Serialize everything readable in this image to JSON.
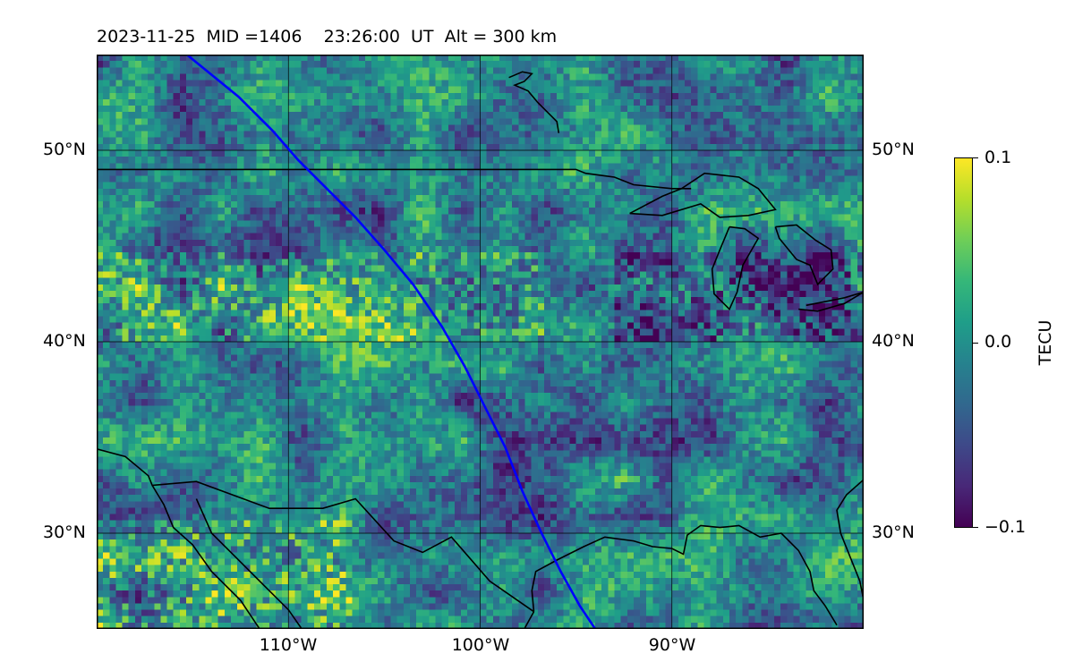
{
  "title": "2023-11-25  MID =1406    23:26:00  UT  Alt = 300 km",
  "map": {
    "type": "heatmap",
    "lon_range": [
      -120,
      -80
    ],
    "lat_range": [
      25,
      55
    ],
    "grid_lons": [
      -110,
      -100,
      -90
    ],
    "grid_lats": [
      30,
      40,
      50
    ],
    "lat_labels": [
      "30°N",
      "40°N",
      "50°N"
    ],
    "lon_labels": [
      "110°W",
      "100°W",
      "90°W"
    ],
    "track_color": "#0000ff",
    "track": [
      [
        -115.3,
        55
      ],
      [
        -112.6,
        52.8
      ],
      [
        -110.8,
        51.0
      ],
      [
        -109.5,
        49.5
      ],
      [
        -108,
        48
      ],
      [
        -106.5,
        46.5
      ],
      [
        -105,
        44.8
      ],
      [
        -103.5,
        43
      ],
      [
        -102,
        40.8
      ],
      [
        -100.8,
        38.7
      ],
      [
        -99.7,
        36.5
      ],
      [
        -98.7,
        34.5
      ],
      [
        -97.8,
        32.2
      ],
      [
        -96.8,
        30.0
      ],
      [
        -95.8,
        28.0
      ],
      [
        -94.8,
        26.2
      ],
      [
        -94.0,
        25
      ]
    ],
    "coastlines": {
      "us_canada_border": [
        [
          -120,
          49.0
        ],
        [
          -95.0,
          49.0
        ],
        [
          -94.5,
          48.8
        ],
        [
          -93,
          48.6
        ],
        [
          -92,
          48.2
        ],
        [
          -90,
          48.0
        ],
        [
          -89,
          48.0
        ]
      ],
      "hudson_bay": [
        [
          -98.5,
          53.8
        ],
        [
          -97.8,
          54.1
        ],
        [
          -97.3,
          54.0
        ],
        [
          -97.7,
          53.6
        ],
        [
          -98.2,
          53.4
        ],
        [
          -97.5,
          53.1
        ],
        [
          -97,
          52.5
        ],
        [
          -96.5,
          52.0
        ],
        [
          -96,
          51.5
        ],
        [
          -95.9,
          50.9
        ]
      ],
      "lake_superior": [
        [
          -92.2,
          46.7
        ],
        [
          -90.5,
          47.6
        ],
        [
          -89.5,
          48.0
        ],
        [
          -88.3,
          48.8
        ],
        [
          -86.5,
          48.6
        ],
        [
          -85.5,
          48.0
        ],
        [
          -84.6,
          46.9
        ],
        [
          -86,
          46.6
        ],
        [
          -87.5,
          46.5
        ],
        [
          -88.5,
          47.2
        ],
        [
          -90.5,
          46.6
        ],
        [
          -92.2,
          46.7
        ]
      ],
      "lake_michigan": [
        [
          -87.0,
          46.0
        ],
        [
          -86.2,
          45.9
        ],
        [
          -85.5,
          45.4
        ],
        [
          -86.3,
          44.0
        ],
        [
          -86.6,
          42.6
        ],
        [
          -87.0,
          41.7
        ],
        [
          -87.8,
          42.5
        ],
        [
          -87.9,
          43.8
        ],
        [
          -87.5,
          44.8
        ],
        [
          -87.0,
          46.0
        ]
      ],
      "lake_huron": [
        [
          -84.6,
          46.0
        ],
        [
          -83.5,
          46.1
        ],
        [
          -82.5,
          45.3
        ],
        [
          -81.7,
          44.8
        ],
        [
          -81.6,
          43.8
        ],
        [
          -82.4,
          43.0
        ],
        [
          -82.8,
          44.0
        ],
        [
          -83.5,
          44.3
        ],
        [
          -84.4,
          45.4
        ],
        [
          -84.6,
          46.0
        ]
      ],
      "lake_erie": [
        [
          -83.4,
          41.7
        ],
        [
          -82.4,
          41.6
        ],
        [
          -81.0,
          42.0
        ],
        [
          -80,
          42.6
        ],
        [
          -81.0,
          42.3
        ],
        [
          -83.0,
          41.9
        ]
      ],
      "gulf_coast": [
        [
          -97.2,
          25.9
        ],
        [
          -97.3,
          27.0
        ],
        [
          -97.1,
          28.0
        ],
        [
          -96.0,
          28.6
        ],
        [
          -94.6,
          29.3
        ],
        [
          -93.5,
          29.8
        ],
        [
          -92.0,
          29.6
        ],
        [
          -91.0,
          29.3
        ],
        [
          -90.0,
          29.2
        ],
        [
          -89.4,
          28.9
        ],
        [
          -89.2,
          29.9
        ],
        [
          -88.5,
          30.4
        ],
        [
          -87.5,
          30.3
        ],
        [
          -86.5,
          30.4
        ],
        [
          -85.4,
          29.8
        ],
        [
          -84.3,
          30.0
        ],
        [
          -83.4,
          29.1
        ],
        [
          -82.8,
          28.0
        ],
        [
          -82.6,
          27.0
        ],
        [
          -82.0,
          26.2
        ],
        [
          -81.4,
          25.2
        ]
      ],
      "atlantic_coast": [
        [
          -80.0,
          25.2
        ],
        [
          -80.0,
          26.5
        ],
        [
          -80.2,
          27.5
        ],
        [
          -80.6,
          28.5
        ],
        [
          -81.2,
          30.0
        ],
        [
          -81.4,
          31.2
        ],
        [
          -80.9,
          32.0
        ],
        [
          -80.0,
          32.8
        ]
      ],
      "us_mexico_border": [
        [
          -120,
          34.4
        ],
        [
          -118.5,
          34.0
        ],
        [
          -117.3,
          33.0
        ],
        [
          -117.1,
          32.5
        ],
        [
          -114.8,
          32.7
        ],
        [
          -111.0,
          31.3
        ],
        [
          -108.2,
          31.3
        ],
        [
          -106.5,
          31.8
        ],
        [
          -104.5,
          29.6
        ],
        [
          -103.0,
          29.0
        ],
        [
          -101.5,
          29.8
        ],
        [
          -99.5,
          27.5
        ],
        [
          -97.2,
          25.9
        ]
      ],
      "gulf_of_california": [
        [
          -114.8,
          31.8
        ],
        [
          -114.0,
          30.0
        ],
        [
          -112.8,
          28.8
        ],
        [
          -111.5,
          27.5
        ],
        [
          -110.0,
          26.0
        ],
        [
          -109.3,
          25.0
        ]
      ],
      "baja": [
        [
          -117.1,
          32.5
        ],
        [
          -116.5,
          31.5
        ],
        [
          -116.0,
          30.3
        ],
        [
          -115.0,
          29.4
        ],
        [
          -114.0,
          28.0
        ],
        [
          -112.5,
          26.5
        ],
        [
          -111.5,
          25.0
        ]
      ],
      "mexico_gulf_coast": [
        [
          -97.2,
          25.9
        ],
        [
          -97.7,
          25.0
        ]
      ]
    }
  },
  "colorbar": {
    "label": "TECU",
    "ticks": [
      "0.1",
      "0.0",
      "−0.1"
    ],
    "vmin": -0.1,
    "vmax": 0.1
  }
}
